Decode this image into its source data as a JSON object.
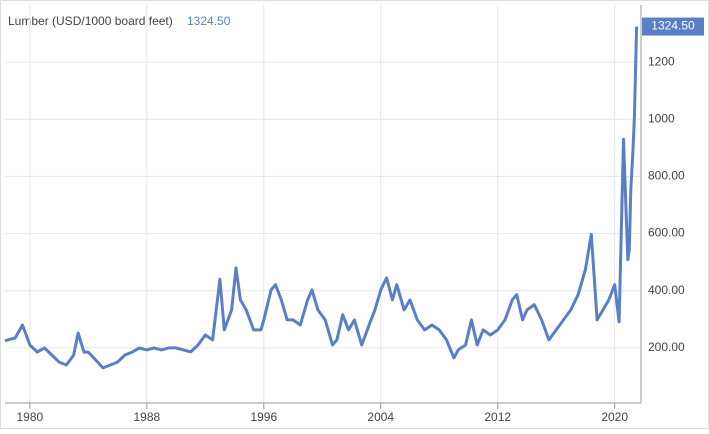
{
  "chart_data": {
    "type": "line",
    "title": "Lumber (USD/1000 board feet)",
    "last_label": "1324.50",
    "x": [
      1978.3,
      1979,
      1979.5,
      1980,
      1980.5,
      1981,
      1981.5,
      1982,
      1982.5,
      1983,
      1983.3,
      1983.7,
      1984,
      1984.5,
      1985,
      1985.5,
      1986,
      1986.5,
      1987,
      1987.5,
      1988,
      1988.5,
      1989,
      1989.5,
      1990,
      1990.5,
      1991,
      1991.5,
      1992,
      1992.5,
      1993,
      1993.3,
      1993.8,
      1994.1,
      1994.4,
      1994.8,
      1995.3,
      1995.8,
      1996,
      1996.5,
      1996.8,
      1997.2,
      1997.6,
      1998,
      1998.5,
      1999,
      1999.3,
      1999.7,
      2000.2,
      2000.7,
      2001,
      2001.4,
      2001.8,
      2002.2,
      2002.7,
      2003.2,
      2003.6,
      2004,
      2004.4,
      2004.8,
      2005.1,
      2005.6,
      2006,
      2006.5,
      2007,
      2007.5,
      2008,
      2008.5,
      2009,
      2009.3,
      2009.8,
      2010.2,
      2010.6,
      2011,
      2011.5,
      2012,
      2012.5,
      2013,
      2013.3,
      2013.7,
      2014,
      2014.5,
      2015,
      2015.5,
      2016,
      2016.5,
      2017,
      2017.5,
      2018,
      2018.4,
      2018.8,
      2019.2,
      2019.6,
      2020,
      2020.3,
      2020.6,
      2020.9,
      2021.0,
      2021.1,
      2021.25,
      2021.35,
      2021.5
    ],
    "series": [
      {
        "name": "Lumber",
        "color": "#5b7fc6",
        "values": [
          225,
          235,
          280,
          210,
          185,
          200,
          175,
          150,
          140,
          175,
          252,
          185,
          185,
          158,
          130,
          140,
          150,
          175,
          185,
          200,
          193,
          200,
          193,
          200,
          200,
          193,
          186,
          210,
          245,
          228,
          440,
          263,
          333,
          480,
          368,
          333,
          263,
          263,
          298,
          403,
          421,
          368,
          298,
          298,
          280,
          368,
          403,
          333,
          298,
          210,
          228,
          316,
          263,
          298,
          210,
          280,
          333,
          403,
          445,
          368,
          421,
          333,
          368,
          298,
          263,
          280,
          263,
          228,
          165,
          193,
          210,
          298,
          210,
          263,
          245,
          263,
          298,
          368,
          386,
          298,
          333,
          351,
          298,
          228,
          263,
          298,
          333,
          386,
          474,
          597,
          298,
          333,
          368,
          421,
          291,
          930,
          509,
          544,
          754,
          895,
          1007,
          1324.5
        ]
      }
    ],
    "xlim": [
      1978.3,
      2021.8
    ],
    "xticks": [
      1980,
      1988,
      1996,
      2004,
      2012,
      2020
    ],
    "ylim": [
      0,
      1400
    ],
    "yticks": [
      {
        "value": 200,
        "label": "200.00"
      },
      {
        "value": 400,
        "label": "400.00"
      },
      {
        "value": 600,
        "label": "600.00"
      },
      {
        "value": 800,
        "label": "800.00"
      },
      1000,
      1200
    ],
    "grid": true
  }
}
